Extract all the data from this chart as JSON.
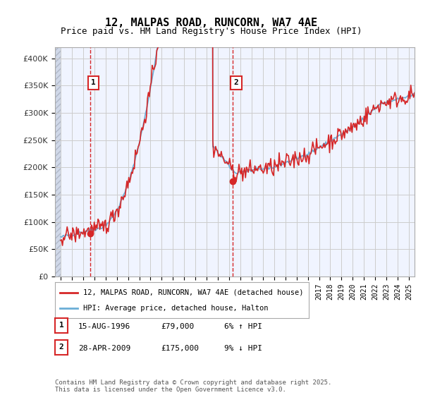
{
  "title": "12, MALPAS ROAD, RUNCORN, WA7 4AE",
  "subtitle": "Price paid vs. HM Land Registry's House Price Index (HPI)",
  "xlabel": "",
  "ylabel": "",
  "ylim": [
    0,
    420000
  ],
  "yticks": [
    0,
    50000,
    100000,
    150000,
    200000,
    250000,
    300000,
    350000,
    400000
  ],
  "ytick_labels": [
    "£0",
    "£50K",
    "£100K",
    "£150K",
    "£200K",
    "£250K",
    "£300K",
    "£350K",
    "£400K"
  ],
  "hpi_color": "#6baed6",
  "price_color": "#d62728",
  "dashed_line_color": "#d62728",
  "sale1_year": 1996.62,
  "sale1_price": 79000,
  "sale2_year": 2009.32,
  "sale2_price": 175000,
  "legend_label1": "12, MALPAS ROAD, RUNCORN, WA7 4AE (detached house)",
  "legend_label2": "HPI: Average price, detached house, Halton",
  "annotation1_label": "1",
  "annotation2_label": "2",
  "table_row1": [
    "1",
    "15-AUG-1996",
    "£79,000",
    "6% ↑ HPI"
  ],
  "table_row2": [
    "2",
    "28-APR-2009",
    "£175,000",
    "9% ↓ HPI"
  ],
  "footer": "Contains HM Land Registry data © Crown copyright and database right 2025.\nThis data is licensed under the Open Government Licence v3.0.",
  "bg_color": "#ffffff",
  "plot_bg": "#f0f4ff",
  "hatch_color": "#d0d8e8",
  "grid_color": "#cccccc",
  "xmin": 1993.5,
  "xmax": 2025.5
}
